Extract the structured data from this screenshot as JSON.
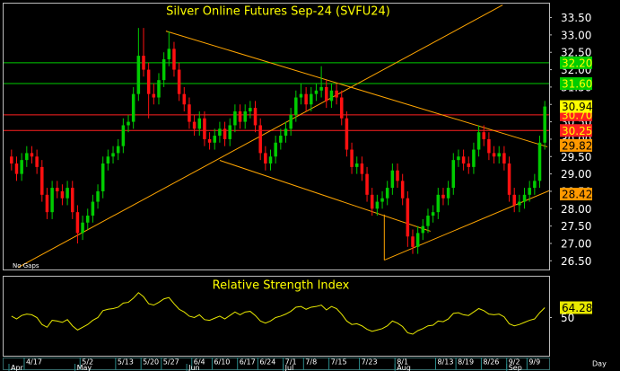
{
  "chart_data": [
    {
      "type": "candlestick",
      "title": "Silver Online Futures Sep-24 (SVFU24)",
      "note": "No Gaps",
      "x_label": "Day",
      "categories": [
        null,
        null,
        null,
        "4/17",
        null,
        null,
        null,
        null,
        null,
        null,
        null,
        null,
        null,
        null,
        "5/2",
        null,
        null,
        null,
        null,
        null,
        null,
        "5/13",
        null,
        null,
        null,
        null,
        "5/20",
        null,
        null,
        null,
        "5/27",
        null,
        null,
        null,
        null,
        null,
        "6/4",
        null,
        null,
        null,
        "6/10",
        null,
        null,
        null,
        null,
        "6/17",
        null,
        null,
        null,
        "6/24",
        null,
        null,
        null,
        null,
        "7/1",
        null,
        null,
        null,
        "7/8",
        null,
        null,
        null,
        null,
        "7/15",
        null,
        null,
        null,
        null,
        null,
        "7/23",
        null,
        null,
        null,
        null,
        null,
        null,
        "8/1",
        null,
        null,
        null,
        null,
        null,
        null,
        null,
        "8/13",
        null,
        null,
        null,
        "8/19",
        null,
        null,
        null,
        null,
        "8/26",
        null,
        null,
        null,
        null,
        "9/2",
        null,
        null,
        null,
        "9/9",
        null,
        null,
        null
      ],
      "months": [
        "Apr",
        null,
        null,
        null,
        null,
        null,
        null,
        null,
        null,
        null,
        null,
        null,
        null,
        "May",
        null,
        null,
        null,
        null,
        null,
        null,
        null,
        null,
        null,
        null,
        null,
        null,
        null,
        null,
        null,
        null,
        null,
        null,
        null,
        null,
        null,
        "Jun",
        null,
        null,
        null,
        null,
        null,
        null,
        null,
        null,
        null,
        null,
        null,
        null,
        null,
        null,
        null,
        null,
        null,
        null,
        "Jul",
        null,
        null,
        null,
        null,
        null,
        null,
        null,
        null,
        null,
        null,
        null,
        null,
        null,
        null,
        null,
        null,
        null,
        null,
        null,
        null,
        null,
        "Aug",
        null,
        null,
        null,
        null,
        null,
        null,
        null,
        null,
        null,
        null,
        null,
        null,
        null,
        null,
        null,
        null,
        null,
        null,
        null,
        null,
        null,
        "Sep",
        null,
        null,
        null,
        null,
        null,
        null,
        null
      ],
      "open": [
        29.5,
        29.3,
        29.0,
        29.4,
        29.6,
        29.5,
        29.2,
        28.4,
        27.9,
        28.6,
        28.5,
        28.3,
        28.6,
        27.9,
        27.3,
        27.6,
        27.8,
        28.2,
        28.5,
        29.3,
        29.5,
        29.6,
        29.8,
        30.4,
        30.5,
        31.3,
        32.4,
        32.0,
        31.3,
        31.2,
        31.7,
        32.3,
        32.6,
        32.0,
        31.3,
        31.0,
        30.5,
        30.3,
        30.6,
        30.0,
        29.9,
        30.1,
        30.3,
        30.0,
        30.4,
        30.8,
        30.5,
        30.8,
        30.9,
        30.4,
        29.6,
        29.3,
        29.5,
        29.9,
        30.1,
        30.3,
        30.7,
        31.2,
        31.3,
        31.0,
        31.3,
        31.4,
        31.5,
        31.1,
        31.4,
        31.2,
        30.6,
        29.7,
        29.2,
        29.3,
        29.0,
        28.4,
        28.0,
        28.2,
        28.3,
        28.6,
        29.1,
        28.8,
        28.3,
        27.2,
        26.9,
        27.3,
        27.5,
        27.8,
        27.9,
        28.4,
        28.3,
        28.6,
        29.4,
        29.5,
        29.3,
        29.2,
        29.7,
        30.2,
        30.0,
        29.6,
        29.5,
        29.6,
        29.3,
        28.4,
        28.1,
        28.2,
        28.4,
        28.6,
        28.8,
        29.9
      ],
      "high": [
        29.7,
        29.5,
        29.6,
        29.8,
        29.8,
        29.7,
        29.4,
        28.6,
        28.8,
        28.8,
        28.7,
        28.8,
        28.8,
        28.1,
        27.8,
        28.0,
        28.4,
        28.7,
        29.5,
        29.7,
        29.8,
        30.0,
        30.6,
        30.7,
        31.5,
        33.2,
        33.2,
        32.2,
        31.6,
        31.9,
        32.5,
        33.1,
        32.8,
        32.2,
        31.5,
        31.2,
        30.7,
        30.8,
        30.8,
        30.2,
        30.3,
        30.5,
        30.5,
        30.6,
        31.0,
        31.0,
        31.0,
        31.1,
        31.1,
        30.6,
        29.8,
        29.7,
        30.1,
        30.3,
        30.5,
        30.9,
        31.4,
        31.6,
        31.5,
        31.5,
        31.6,
        32.1,
        31.7,
        31.6,
        31.6,
        31.4,
        30.8,
        29.9,
        29.5,
        29.5,
        29.2,
        28.6,
        28.4,
        28.5,
        28.8,
        29.3,
        29.3,
        29.0,
        28.5,
        27.4,
        27.5,
        27.7,
        28.0,
        28.1,
        28.6,
        28.6,
        28.8,
        29.6,
        29.7,
        29.7,
        29.5,
        29.9,
        30.4,
        30.4,
        30.2,
        29.8,
        29.8,
        29.8,
        29.5,
        28.6,
        28.4,
        28.6,
        28.8,
        29.0,
        30.1,
        31.1
      ],
      "low": [
        29.1,
        28.8,
        28.8,
        29.2,
        29.3,
        29.0,
        28.2,
        27.7,
        27.7,
        28.3,
        28.1,
        28.1,
        27.7,
        27.0,
        27.1,
        27.4,
        27.6,
        28.0,
        28.3,
        29.1,
        29.3,
        29.4,
        29.6,
        30.2,
        30.3,
        31.1,
        31.8,
        30.6,
        31.0,
        31.0,
        31.5,
        32.1,
        31.8,
        31.1,
        30.8,
        30.3,
        30.1,
        30.1,
        29.8,
        29.7,
        29.7,
        29.9,
        29.8,
        29.8,
        30.2,
        30.3,
        30.3,
        30.6,
        30.2,
        29.4,
        29.1,
        29.1,
        29.3,
        29.7,
        29.9,
        30.1,
        30.5,
        31.0,
        30.8,
        30.8,
        31.1,
        31.2,
        30.9,
        30.9,
        31.0,
        30.4,
        29.5,
        29.0,
        29.0,
        28.8,
        28.2,
        27.8,
        27.8,
        28.0,
        28.1,
        28.4,
        28.6,
        28.1,
        26.9,
        26.7,
        26.7,
        27.1,
        27.3,
        27.6,
        27.7,
        28.1,
        28.1,
        28.4,
        29.2,
        29.1,
        29.0,
        29.0,
        29.5,
        29.8,
        29.4,
        29.3,
        29.3,
        29.1,
        28.2,
        27.9,
        27.9,
        28.0,
        28.2,
        28.4,
        28.6,
        29.7
      ],
      "close": [
        29.3,
        29.0,
        29.4,
        29.6,
        29.5,
        29.2,
        28.4,
        27.9,
        28.6,
        28.5,
        28.3,
        28.6,
        27.9,
        27.3,
        27.6,
        27.8,
        28.2,
        28.5,
        29.3,
        29.5,
        29.6,
        29.8,
        30.4,
        30.5,
        31.3,
        32.4,
        32.0,
        31.3,
        31.2,
        31.7,
        32.3,
        32.6,
        32.0,
        31.3,
        31.0,
        30.5,
        30.3,
        30.6,
        30.0,
        29.9,
        30.1,
        30.3,
        30.0,
        30.4,
        30.8,
        30.5,
        30.8,
        30.9,
        30.4,
        29.6,
        29.3,
        29.5,
        29.9,
        30.1,
        30.3,
        30.7,
        31.2,
        31.3,
        31.0,
        31.3,
        31.4,
        31.5,
        31.1,
        31.4,
        31.2,
        30.6,
        29.7,
        29.2,
        29.3,
        29.0,
        28.4,
        28.0,
        28.2,
        28.3,
        28.6,
        29.1,
        28.8,
        28.3,
        27.2,
        26.9,
        27.3,
        27.5,
        27.8,
        27.9,
        28.4,
        28.3,
        28.6,
        29.4,
        29.5,
        29.3,
        29.2,
        29.7,
        30.2,
        30.0,
        29.6,
        29.5,
        29.6,
        29.3,
        28.4,
        28.1,
        28.2,
        28.4,
        28.6,
        28.8,
        29.9,
        30.94
      ],
      "up_color": "#00cc00",
      "down_color": "#ff1010",
      "last_color": "#ffff00",
      "ylim": [
        26.25,
        33.85
      ],
      "yticks": [
        {
          "value": 26.5,
          "label": "26.50"
        },
        {
          "value": 27,
          "label": "27.00"
        },
        {
          "value": 27.5,
          "label": "27.50"
        },
        {
          "value": 28,
          "label": "28.00"
        },
        {
          "value": 28.5,
          "label": "28.50"
        },
        {
          "value": 29,
          "label": "29.00"
        },
        {
          "value": 29.5,
          "label": "29.50"
        },
        {
          "value": 30,
          "label": "30.00"
        },
        {
          "value": 30.5,
          "label": "30.50"
        },
        {
          "value": 31,
          "label": "31.00"
        },
        {
          "value": 31.5,
          "label": "31.50"
        },
        {
          "value": 32,
          "label": "32.00"
        },
        {
          "value": 32.5,
          "label": "32.50"
        },
        {
          "value": 33,
          "label": "33.00"
        },
        {
          "value": 33.5,
          "label": "33.50"
        }
      ],
      "levels": [
        {
          "value": 32.2,
          "label": "32.20",
          "color": "#00cc00"
        },
        {
          "value": 31.6,
          "label": "31.60",
          "color": "#00cc00"
        },
        {
          "value": 30.7,
          "label": "30.70",
          "color": "#ff2020"
        },
        {
          "value": 30.25,
          "label": "30.25",
          "color": "#ff2020"
        }
      ],
      "markers": [
        {
          "value": 29.82,
          "color": "#ff9900"
        },
        {
          "value": 28.42,
          "color": "#ff9900"
        }
      ],
      "trendline_color": "#ffa500",
      "trendlines": [
        {
          "from": [
            1.3,
            26.31
          ],
          "to": [
            96.7,
            33.86
          ]
        },
        {
          "from": [
            30.4,
            33.11
          ],
          "to": [
            105.5,
            29.78
          ]
        },
        {
          "from": [
            41,
            29.39
          ],
          "to": [
            82.5,
            27.35
          ]
        },
        {
          "from": [
            73.4,
            26.52
          ],
          "to": [
            106.4,
            28.55
          ]
        },
        {
          "from": [
            73.4,
            27.83
          ],
          "to": [
            73.4,
            26.52
          ]
        }
      ]
    },
    {
      "type": "line",
      "title": "Relative Strength Index",
      "color": "#e8e800",
      "values": [
        52,
        48,
        53,
        55,
        54,
        50,
        40,
        36,
        46,
        45,
        43,
        47,
        38,
        32,
        36,
        40,
        46,
        50,
        60,
        62,
        63,
        65,
        71,
        72,
        78,
        86,
        80,
        70,
        68,
        72,
        77,
        79,
        70,
        62,
        58,
        52,
        50,
        54,
        47,
        46,
        49,
        52,
        48,
        53,
        58,
        54,
        58,
        59,
        53,
        45,
        42,
        45,
        50,
        52,
        55,
        59,
        65,
        66,
        62,
        65,
        66,
        68,
        61,
        66,
        63,
        55,
        45,
        40,
        41,
        38,
        33,
        30,
        32,
        34,
        38,
        45,
        42,
        37,
        28,
        26,
        31,
        34,
        38,
        39,
        45,
        44,
        48,
        56,
        57,
        54,
        53,
        58,
        63,
        60,
        55,
        54,
        55,
        51,
        41,
        38,
        40,
        43,
        46,
        48,
        57,
        64.28
      ],
      "ylim": [
        0,
        100
      ],
      "yticks": [
        50
      ]
    }
  ]
}
